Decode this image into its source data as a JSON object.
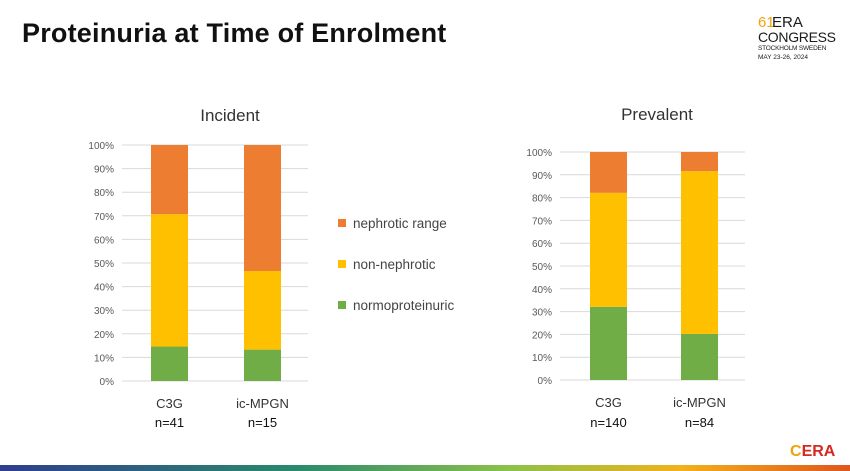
{
  "slide": {
    "title": "Proteinuria at Time of Enrolment",
    "logo_top": {
      "number": "61",
      "era": "ERA",
      "congress": "CONGRESS",
      "city": "STOCKHOLM SWEDEN",
      "dates": "MAY 23-26, 2024"
    },
    "logo_bottom": {
      "prefix": "C",
      "text": "ERA"
    }
  },
  "legend": {
    "items": [
      {
        "label": "nephrotic range",
        "color": "#ed7d31"
      },
      {
        "label": "non-nephrotic",
        "color": "#ffc000"
      },
      {
        "label": "normoproteinuric",
        "color": "#70ad47"
      }
    ]
  },
  "colors": {
    "nephrotic": "#ed7d31",
    "non_nephrotic": "#ffc000",
    "normoproteinuric": "#70ad47",
    "grid": "#d9d9d9",
    "tick": "#595959"
  },
  "chart_data": [
    {
      "type": "bar",
      "stacked": true,
      "title": "Incident",
      "categories": [
        "C3G",
        "ic-MPGN"
      ],
      "category_sublabels": [
        "n=41",
        "n=15"
      ],
      "yticks": [
        "0%",
        "10%",
        "20%",
        "30%",
        "40%",
        "50%",
        "60%",
        "70%",
        "80%",
        "90%",
        "100%"
      ],
      "ylim": [
        0,
        100
      ],
      "series": [
        {
          "name": "normoproteinuric",
          "values": [
            14.6,
            13.3
          ]
        },
        {
          "name": "non-nephrotic",
          "values": [
            56.1,
            33.3
          ]
        },
        {
          "name": "nephrotic range",
          "values": [
            29.3,
            53.4
          ]
        }
      ]
    },
    {
      "type": "bar",
      "stacked": true,
      "title": "Prevalent",
      "categories": [
        "C3G",
        "ic-MPGN"
      ],
      "category_sublabels": [
        "n=140",
        "n=84"
      ],
      "yticks": [
        "0%",
        "10%",
        "20%",
        "30%",
        "40%",
        "50%",
        "60%",
        "70%",
        "80%",
        "90%",
        "100%"
      ],
      "ylim": [
        0,
        100
      ],
      "series": [
        {
          "name": "normoproteinuric",
          "values": [
            32.1,
            20.2
          ]
        },
        {
          "name": "non-nephrotic",
          "values": [
            50.0,
            71.4
          ]
        },
        {
          "name": "nephrotic range",
          "values": [
            17.9,
            8.4
          ]
        }
      ]
    }
  ]
}
